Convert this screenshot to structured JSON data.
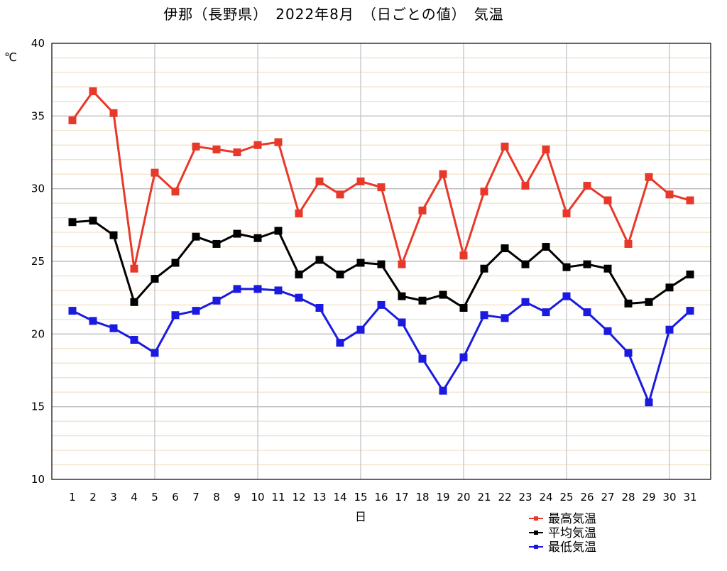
{
  "chart_data": {
    "type": "line",
    "title": "伊那（長野県）　2022年8月　（日ごとの値）　気温",
    "xlabel": "日",
    "ylabel": "℃",
    "ylim": [
      10,
      40
    ],
    "yticks": [
      10,
      15,
      20,
      25,
      30,
      35,
      40
    ],
    "x": [
      1,
      2,
      3,
      4,
      5,
      6,
      7,
      8,
      9,
      10,
      11,
      12,
      13,
      14,
      15,
      16,
      17,
      18,
      19,
      20,
      21,
      22,
      23,
      24,
      25,
      26,
      27,
      28,
      29,
      30,
      31
    ],
    "grid": true,
    "legend_position": "bottom-right",
    "series": [
      {
        "name": "最高気温",
        "color": "#e8382a",
        "values": [
          34.7,
          36.7,
          35.2,
          24.5,
          31.1,
          29.8,
          32.9,
          32.7,
          32.5,
          33.0,
          33.2,
          28.3,
          30.5,
          29.6,
          30.5,
          30.1,
          24.8,
          28.5,
          31.0,
          25.4,
          29.8,
          32.9,
          30.2,
          32.7,
          28.3,
          30.2,
          29.2,
          26.2,
          30.8,
          29.6,
          29.2
        ]
      },
      {
        "name": "平均気温",
        "color": "#000000",
        "values": [
          27.7,
          27.8,
          26.8,
          22.2,
          23.8,
          24.9,
          26.7,
          26.2,
          26.9,
          26.6,
          27.1,
          24.1,
          25.1,
          24.1,
          24.9,
          24.8,
          22.6,
          22.3,
          22.7,
          21.8,
          24.5,
          25.9,
          24.8,
          26.0,
          24.6,
          24.8,
          24.5,
          22.1,
          22.2,
          23.2,
          24.1
        ]
      },
      {
        "name": "最低気温",
        "color": "#1a1ae0",
        "values": [
          21.6,
          20.9,
          20.4,
          19.6,
          18.7,
          21.3,
          21.6,
          22.3,
          23.1,
          23.1,
          23.0,
          22.5,
          21.8,
          19.4,
          20.3,
          22.0,
          20.8,
          18.3,
          16.1,
          18.4,
          21.3,
          21.1,
          22.2,
          21.5,
          22.6,
          21.5,
          20.2,
          18.7,
          15.3,
          20.3,
          21.6
        ]
      }
    ]
  }
}
